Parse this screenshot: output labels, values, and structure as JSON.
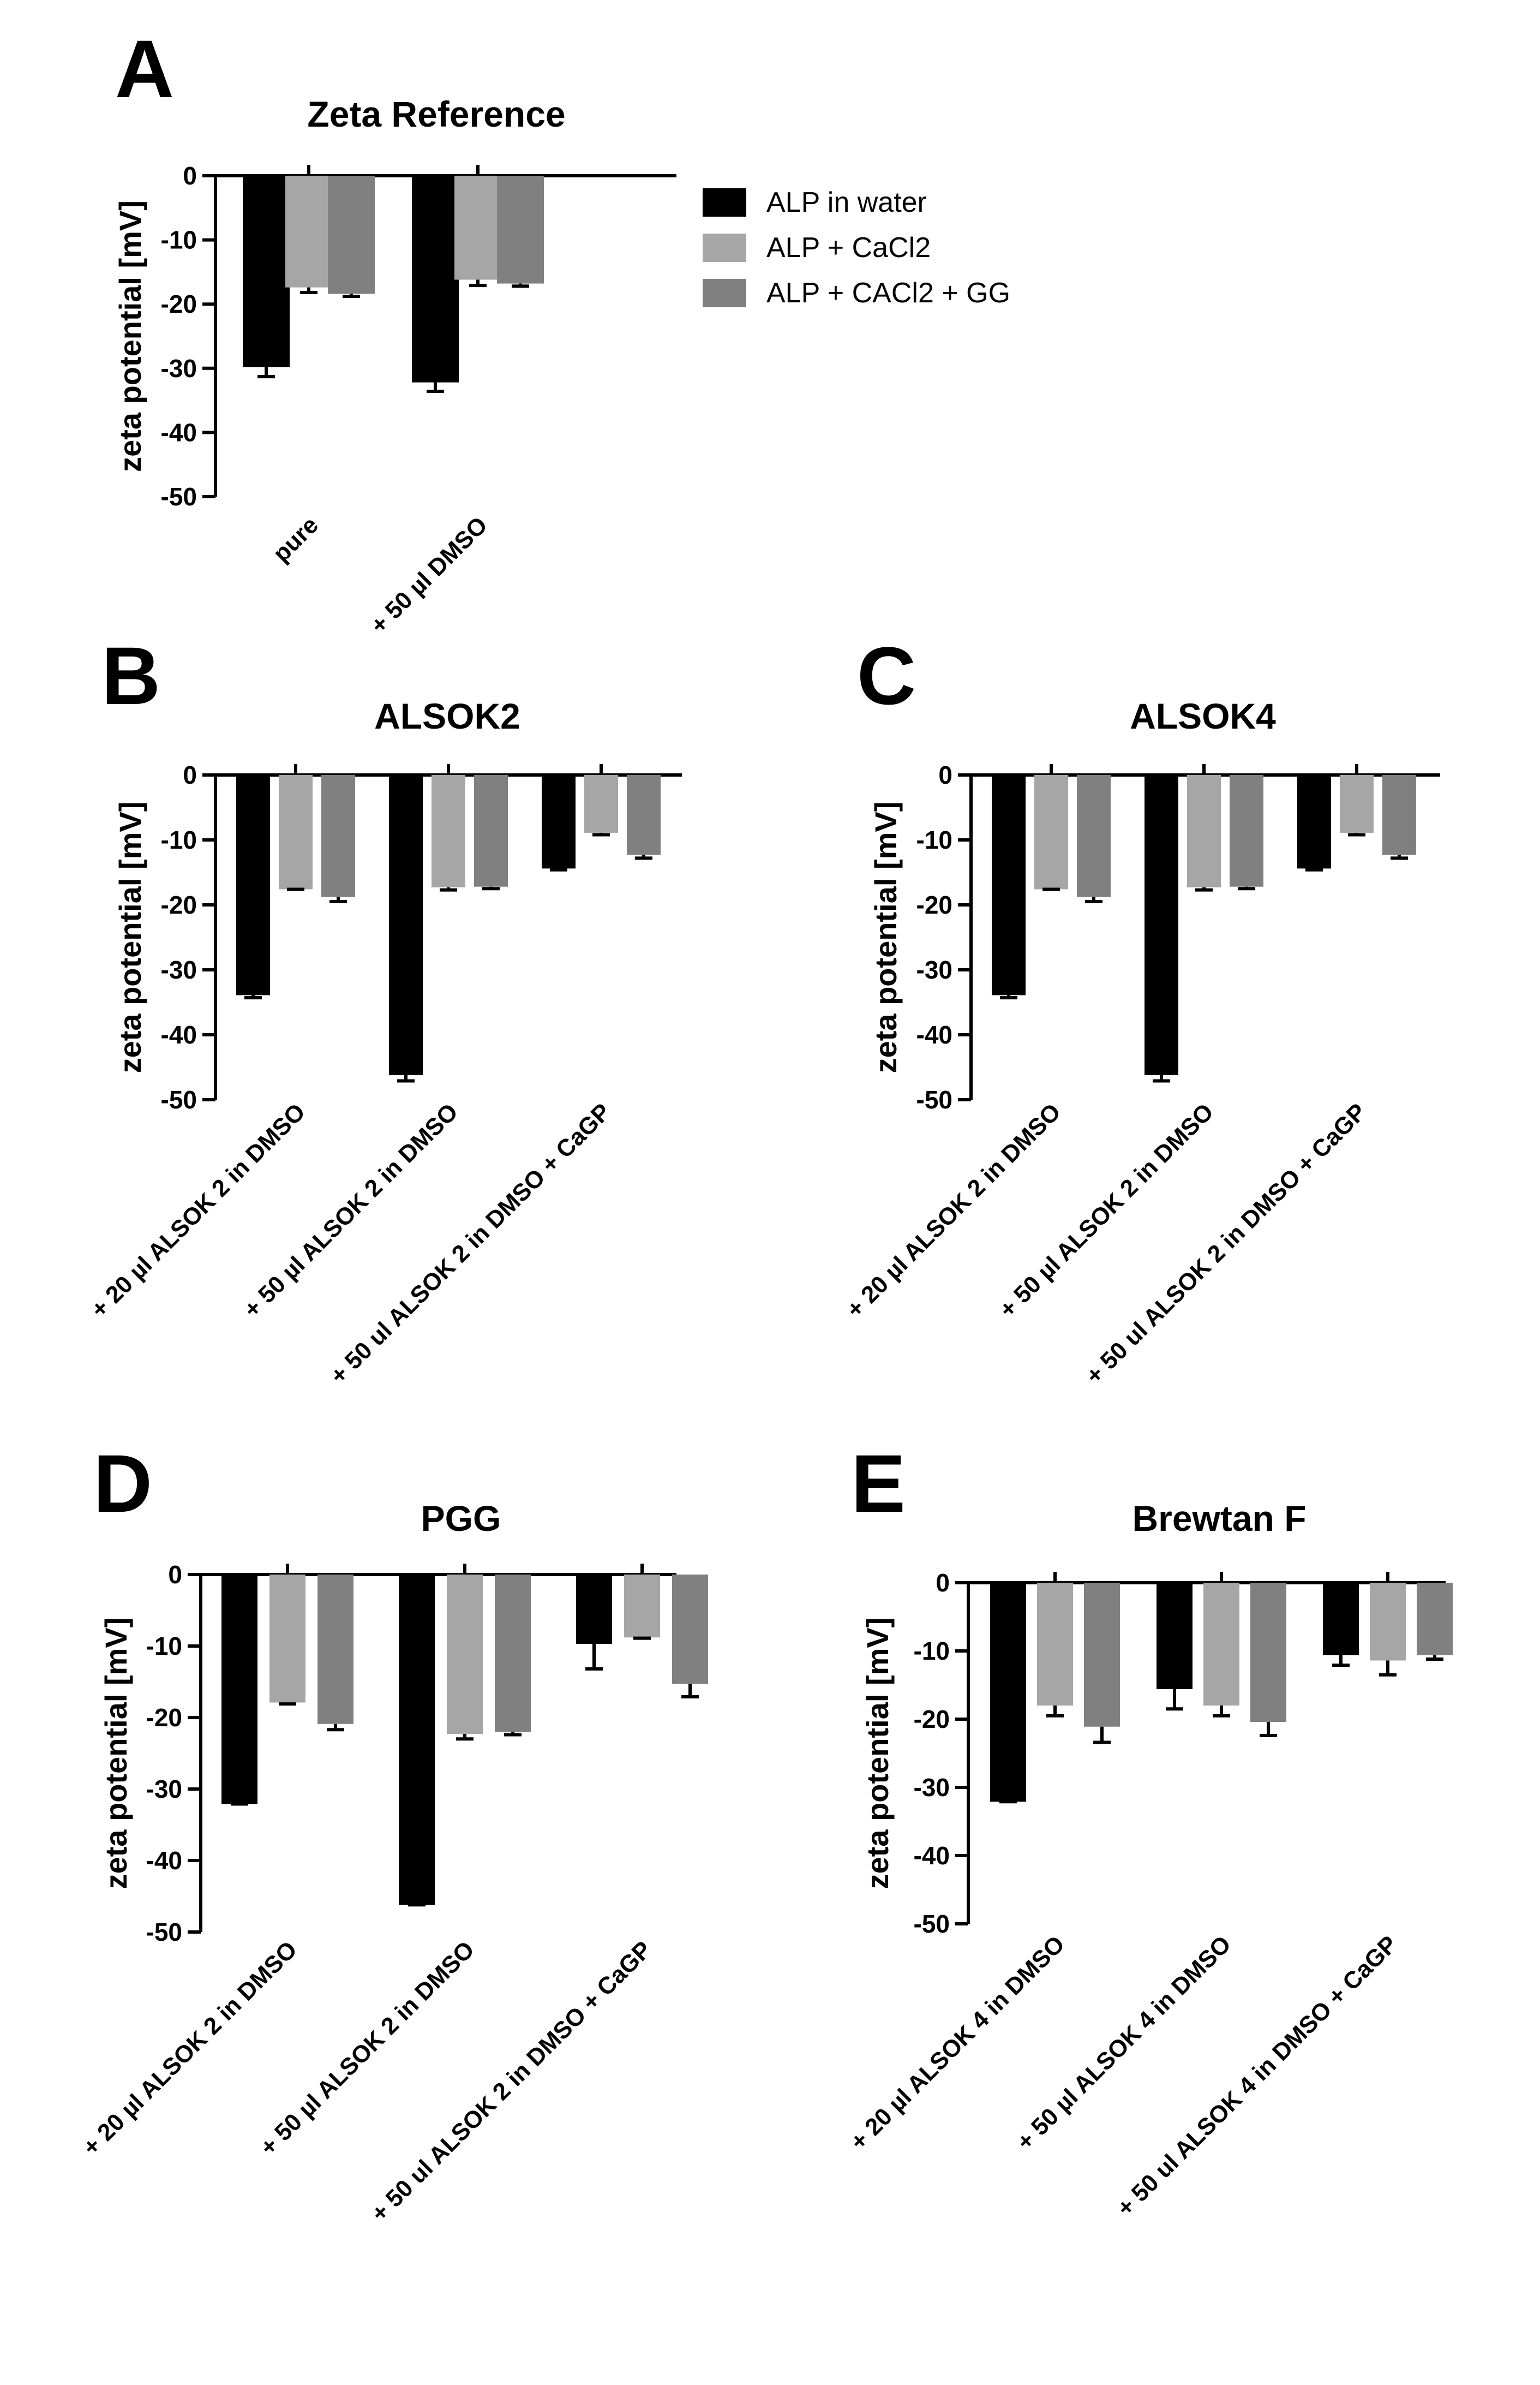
{
  "chart_data": [
    {
      "id": "A",
      "type": "bar",
      "letter": "A",
      "title": "Zeta Reference",
      "ylabel": "zeta potential [mV]",
      "ylim": [
        -50,
        0
      ],
      "yticks": [
        "0",
        "-10",
        "-20",
        "-30",
        "-40",
        "-50"
      ],
      "categories": [
        "pure",
        "+ 50 µl DMSO"
      ],
      "series": [
        {
          "name": "ALP in water",
          "color": "#000000",
          "values": [
            -29.8,
            -32.2
          ],
          "errors": [
            1.5,
            1.4
          ]
        },
        {
          "name": "ALP + CaCl2",
          "color": "#a6a6a6",
          "values": [
            -17.4,
            -16.2
          ],
          "errors": [
            0.8,
            0.9
          ]
        },
        {
          "name": "ALP + CACl2 + GG",
          "color": "#808080",
          "values": [
            -18.4,
            -16.8
          ],
          "errors": [
            0.4,
            0.4
          ]
        }
      ]
    },
    {
      "id": "B",
      "type": "bar",
      "letter": "B",
      "title": "ALSOK2",
      "ylabel": "zeta potential [mV]",
      "ylim": [
        -50,
        0
      ],
      "yticks": [
        "0",
        "-10",
        "-20",
        "-30",
        "-40",
        "-50"
      ],
      "categories": [
        "+ 20 µl ALSOK 2 in DMSO",
        "+ 50 µl ALSOK 2 in DMSO",
        "+ 50 ul ALSOK 2 in DMSO + CaGP"
      ],
      "series": [
        {
          "name": "ALP in water",
          "color": "#000000",
          "values": [
            -33.9,
            -46.2,
            -14.4
          ],
          "errors": [
            0.4,
            0.9,
            0.2
          ]
        },
        {
          "name": "ALP + CaCl2",
          "color": "#a6a6a6",
          "values": [
            -17.6,
            -17.3,
            -8.9
          ],
          "errors": [
            0.0,
            0.4,
            0.3
          ]
        },
        {
          "name": "ALP + CACl2 + GG",
          "color": "#808080",
          "values": [
            -18.8,
            -17.2,
            -12.3
          ],
          "errors": [
            0.7,
            0.3,
            0.5
          ]
        }
      ]
    },
    {
      "id": "C",
      "type": "bar",
      "letter": "C",
      "title": "ALSOK4",
      "ylabel": "zeta potential [mV]",
      "ylim": [
        -50,
        0
      ],
      "yticks": [
        "0",
        "-10",
        "-20",
        "-30",
        "-40",
        "-50"
      ],
      "categories": [
        "+ 20 µl ALSOK 2 in DMSO",
        "+ 50 µl ALSOK 2 in DMSO",
        "+ 50 ul ALSOK 2 in DMSO + CaGP"
      ],
      "series": [
        {
          "name": "ALP in water",
          "color": "#000000",
          "values": [
            -33.9,
            -46.2,
            -14.4
          ],
          "errors": [
            0.4,
            0.9,
            0.2
          ]
        },
        {
          "name": "ALP + CaCl2",
          "color": "#a6a6a6",
          "values": [
            -17.6,
            -17.3,
            -8.9
          ],
          "errors": [
            0.0,
            0.4,
            0.3
          ]
        },
        {
          "name": "ALP + CACl2 + GG",
          "color": "#808080",
          "values": [
            -18.8,
            -17.2,
            -12.3
          ],
          "errors": [
            0.7,
            0.3,
            0.5
          ]
        }
      ]
    },
    {
      "id": "D",
      "type": "bar",
      "letter": "D",
      "title": "PGG",
      "ylabel": "zeta potential [mV]",
      "ylim": [
        -50,
        0
      ],
      "yticks": [
        "0",
        "-10",
        "-20",
        "-30",
        "-40",
        "-50"
      ],
      "categories": [
        "+ 20 µl ALSOK 2 in DMSO",
        "+ 50 µl ALSOK 2 in DMSO",
        "+ 50 ul ALSOK 2 in DMSO + CaGP"
      ],
      "series": [
        {
          "name": "ALP in water",
          "color": "#000000",
          "values": [
            -32.1,
            -46.2,
            -9.7
          ],
          "errors": [
            0.0,
            0.0,
            3.5
          ]
        },
        {
          "name": "ALP + CaCl2",
          "color": "#a6a6a6",
          "values": [
            -17.9,
            -22.3,
            -8.8
          ],
          "errors": [
            0.2,
            0.7,
            0.1
          ]
        },
        {
          "name": "ALP + CACl2 + GG",
          "color": "#808080",
          "values": [
            -20.9,
            -22.0,
            -15.3
          ],
          "errors": [
            0.8,
            0.4,
            1.8
          ]
        }
      ]
    },
    {
      "id": "E",
      "type": "bar",
      "letter": "E",
      "title": "Brewtan F",
      "ylabel": "zeta potential [mV]",
      "ylim": [
        -50,
        0
      ],
      "yticks": [
        "0",
        "-10",
        "-20",
        "-30",
        "-40",
        "-50"
      ],
      "categories": [
        "+ 20 µl ALSOK 4 in DMSO",
        "+ 50 µl ALSOK 4 in DMSO",
        "+ 50 ul ALSOK 4 in DMSO + CaGP"
      ],
      "series": [
        {
          "name": "ALP in water",
          "color": "#000000",
          "values": [
            -32.1,
            -15.6,
            -10.6
          ],
          "errors": [
            0.0,
            2.9,
            1.5
          ]
        },
        {
          "name": "ALP + CaCl2",
          "color": "#a6a6a6",
          "values": [
            -18.0,
            -18.0,
            -11.4
          ],
          "errors": [
            1.5,
            1.5,
            2.1
          ]
        },
        {
          "name": "ALP + CACl2 + GG",
          "color": "#808080",
          "values": [
            -21.1,
            -20.4,
            -10.6
          ],
          "errors": [
            2.3,
            2.0,
            0.6
          ]
        }
      ]
    }
  ],
  "legend": {
    "items": [
      {
        "label": "ALP in water",
        "color": "#000000"
      },
      {
        "label": "ALP + CaCl2",
        "color": "#a6a6a6"
      },
      {
        "label": "ALP + CACl2 + GG",
        "color": "#808080"
      }
    ]
  }
}
